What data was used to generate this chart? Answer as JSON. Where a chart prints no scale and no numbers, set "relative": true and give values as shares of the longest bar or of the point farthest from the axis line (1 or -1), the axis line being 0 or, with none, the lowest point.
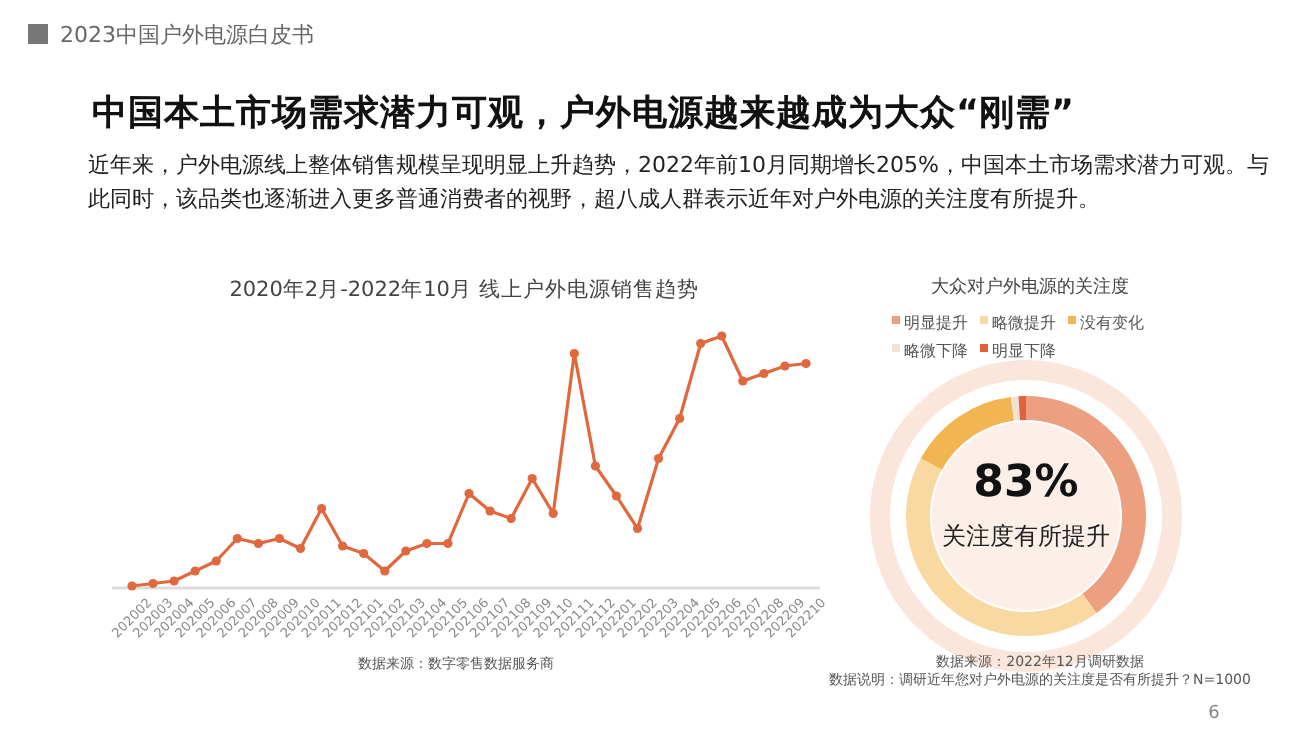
{
  "chart_data": [
    {
      "type": "other",
      "title": "中国本土市场需求潜力可观，户外电源越来越成为大众“刚需”",
      "annotations": [
        "2023中国户外电源白皮书",
        "近年来，户外电源线上整体销售规模呈现明显上升趋势，2022年前10月同期增长205%，中国本土市场需求潜力可观。与此同时，该品类也逐渐进入更多普通消费者的视野，超八成人群表示近年对户外电源的关注度有所提升。",
        "6"
      ]
    },
    {
      "type": "line",
      "title": "2020年2月-2022年10月 线上户外电源销售趋势",
      "relative": true,
      "marker": "circle",
      "categories": [
        "202002",
        "202003",
        "202004",
        "202005",
        "202006",
        "202007",
        "202008",
        "202009",
        "202010",
        "202011",
        "202012",
        "202101",
        "202102",
        "202103",
        "202104",
        "202105",
        "202106",
        "202107",
        "202108",
        "202109",
        "202110",
        "202111",
        "202112",
        "202201",
        "202202",
        "202203",
        "202204",
        "202205",
        "202206",
        "202207",
        "202208",
        "202209",
        "202210"
      ],
      "series": [
        {
          "color": "#e0683c",
          "values": [
            0,
            0.01,
            0.02,
            0.06,
            0.1,
            0.19,
            0.17,
            0.19,
            0.15,
            0.31,
            0.16,
            0.13,
            0.06,
            0.14,
            0.17,
            0.17,
            0.37,
            0.3,
            0.27,
            0.43,
            0.29,
            0.93,
            0.48,
            0.36,
            0.23,
            0.51,
            0.67,
            0.97,
            1,
            0.82,
            0.85,
            0.88,
            0.89
          ]
        }
      ],
      "annotations": [
        "数据来源：数字零售数据服务商"
      ]
    },
    {
      "type": "donut",
      "title": "大众对户外电源的关注度",
      "legend": "top",
      "categories": [
        "明显提升",
        "略微提升",
        "没有变化",
        "略微下降",
        "明显下降"
      ],
      "values": [
        40,
        43,
        15,
        1,
        1
      ],
      "colors": [
        "#eca07f",
        "#f8d9a2",
        "#f3b552",
        "#efe3d6",
        "#e0623a"
      ],
      "annotations": [
        "83%",
        "关注度有所提升",
        "数据来源：2022年12月调研数据",
        "数据说明：调研近年您对户外电源的关注度是否有所提升？N=1000"
      ]
    }
  ]
}
